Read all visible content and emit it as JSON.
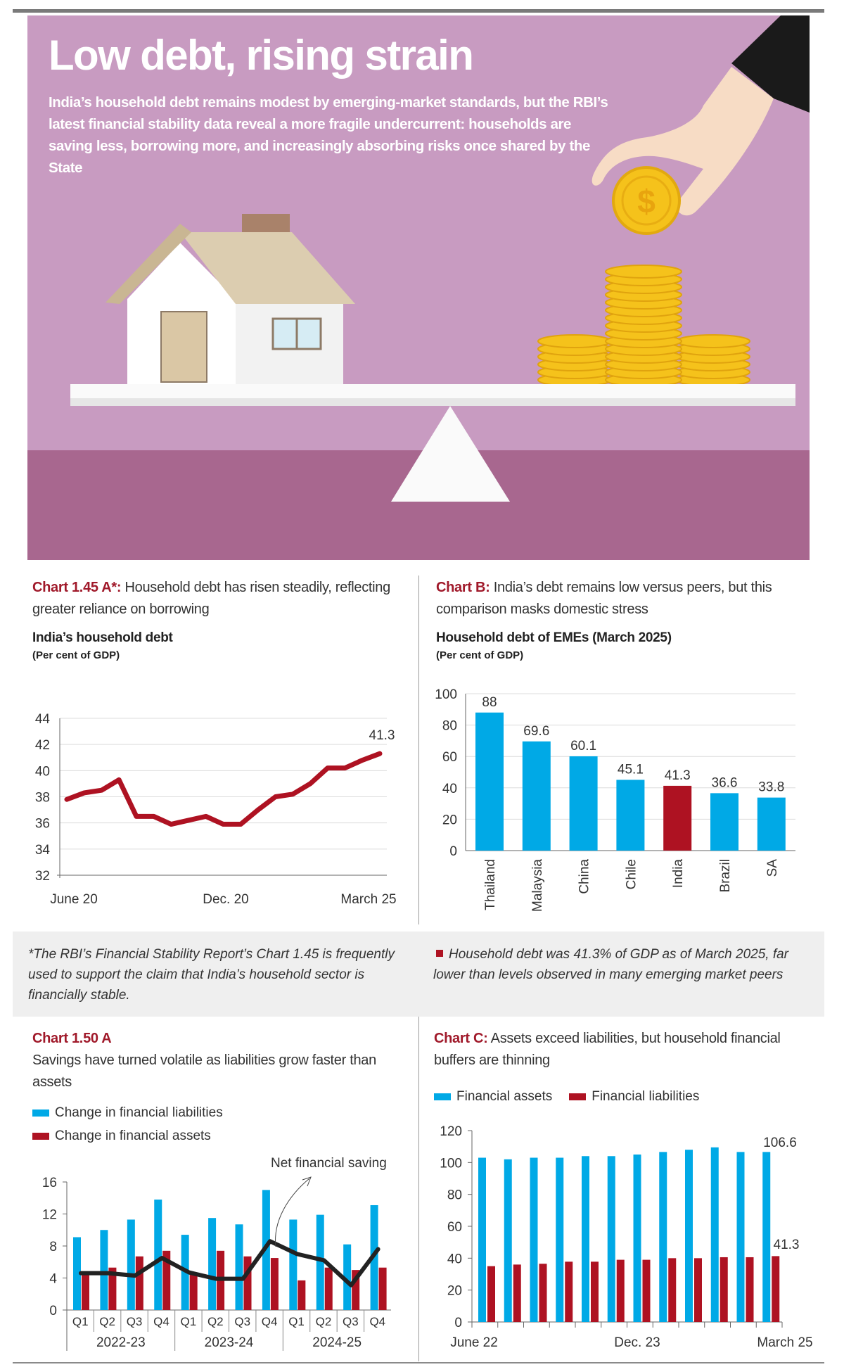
{
  "header": {
    "title": "Low debt, rising strain",
    "dek": "India’s household debt remains modest by emerging-market standards, but the RBI’s latest financial stability data reveal a more fragile undercurrent: households are saving less, borrowing more, and increasingly absorbing risks once shared by the State",
    "illustration": {
      "coin_symbol": "$"
    }
  },
  "colors": {
    "banner": "#c89bc1",
    "band": "#a8678f",
    "accent_red": "#a0192a",
    "blue": "#00a9e6",
    "red": "#ae1222",
    "line": "#222222"
  },
  "charts_text": {
    "a": {
      "lead": "Chart 1.45 A*:",
      "title": " Household debt has risen steadily, reflecting greater reliance on borrowing",
      "subtitle": "India’s household debt",
      "unit": "(Per cent of GDP)"
    },
    "b": {
      "lead": "Chart B:",
      "title": " India’s debt remains low versus peers, but this comparison masks domestic stress",
      "subtitle": "Household debt of EMEs (March 2025)",
      "unit": "(Per cent of GDP)"
    },
    "c150": {
      "lead": "Chart 1.50 A",
      "title": "Savings have turned volatile as liabilities grow faster than assets",
      "legend": [
        "Change in financial liabilities",
        "Change in financial assets"
      ],
      "annotation": "Net financial saving"
    },
    "c": {
      "lead": "Chart C:",
      "title": " Assets exceed liabilities, but household financial buffers are thinning",
      "legend": [
        "Financial assets",
        "Financial liabilities"
      ]
    }
  },
  "notes": {
    "left": "*The RBI’s Financial Stability Report’s Chart 1.45 is frequently used to support the claim that India’s household sector is financially stable.",
    "right": "Household debt was 41.3% of GDP as of March 2025, far lower than levels observed in many emerging market peers"
  },
  "chart_data": [
    {
      "type": "line",
      "title": "India’s household debt",
      "ylabel": "(Per cent of GDP)",
      "ylim": [
        32,
        44
      ],
      "yticks": [
        "32",
        "34",
        "36",
        "38",
        "40",
        "42",
        "44"
      ],
      "xtick_labels": [
        "June 20",
        "Dec. 20",
        "March 25"
      ],
      "grid": true,
      "values": [
        37.8,
        38.3,
        38.5,
        39.3,
        36.5,
        36.5,
        35.9,
        36.2,
        36.5,
        35.9,
        35.9,
        37.0,
        38.0,
        38.2,
        39.0,
        40.2,
        40.2,
        40.8,
        41.3
      ],
      "end_label": "41.3"
    },
    {
      "type": "bar",
      "title": "Household debt of EMEs (March 2025)",
      "ylabel": "(Per cent of GDP)",
      "ylim": [
        0,
        100
      ],
      "yticks": [
        "0",
        "20",
        "40",
        "60",
        "80",
        "100"
      ],
      "grid": true,
      "categories": [
        "Thailand",
        "Malaysia",
        "China",
        "Chile",
        "India",
        "Brazil",
        "SA"
      ],
      "values": [
        88,
        69.6,
        60.1,
        45.1,
        41.3,
        36.6,
        33.8
      ],
      "value_labels": [
        "88",
        "69.6",
        "60.1",
        "45.1",
        "41.3",
        "36.6",
        "33.8"
      ],
      "highlight": "India"
    },
    {
      "type": "bar",
      "title": "Chart 1.50 A",
      "ylim": [
        0,
        16
      ],
      "yticks": [
        "0",
        "4",
        "8",
        "12",
        "16"
      ],
      "grid": false,
      "categories": [
        "Q1",
        "Q2",
        "Q3",
        "Q4",
        "Q1",
        "Q2",
        "Q3",
        "Q4",
        "Q1",
        "Q2",
        "Q3",
        "Q4"
      ],
      "groups": [
        "2022-23",
        "2023-24",
        "2024-25"
      ],
      "series": [
        {
          "name": "Change in financial liabilities",
          "values": [
            9.1,
            10.0,
            11.3,
            13.8,
            9.4,
            11.5,
            10.7,
            15.0,
            11.3,
            11.9,
            8.2,
            13.1
          ]
        },
        {
          "name": "Change in financial assets",
          "values": [
            4.6,
            5.3,
            6.7,
            7.4,
            4.6,
            7.4,
            6.7,
            6.5,
            3.7,
            5.3,
            5.0,
            5.3
          ]
        },
        {
          "name": "Net financial saving",
          "type": "line",
          "values": [
            4.6,
            4.6,
            4.3,
            6.5,
            4.7,
            3.9,
            3.9,
            8.6,
            7.0,
            6.2,
            3.1,
            7.6
          ]
        }
      ]
    },
    {
      "type": "bar",
      "title": "Chart C",
      "ylim": [
        0,
        120
      ],
      "yticks": [
        "0",
        "20",
        "40",
        "60",
        "80",
        "100",
        "120"
      ],
      "grid": false,
      "xtick_labels": [
        "June 22",
        "Dec. 23",
        "March 25"
      ],
      "series": [
        {
          "name": "Financial assets",
          "values": [
            103,
            102,
            103,
            103,
            104,
            104,
            105,
            106.6,
            108,
            109.5,
            106.6,
            106.6
          ]
        },
        {
          "name": "Financial liabilities",
          "values": [
            35,
            36,
            36.5,
            37.8,
            37.8,
            39,
            39,
            40,
            40,
            40.6,
            40.6,
            41.3
          ]
        }
      ],
      "end_labels": [
        "106.6",
        "41.3"
      ]
    }
  ]
}
